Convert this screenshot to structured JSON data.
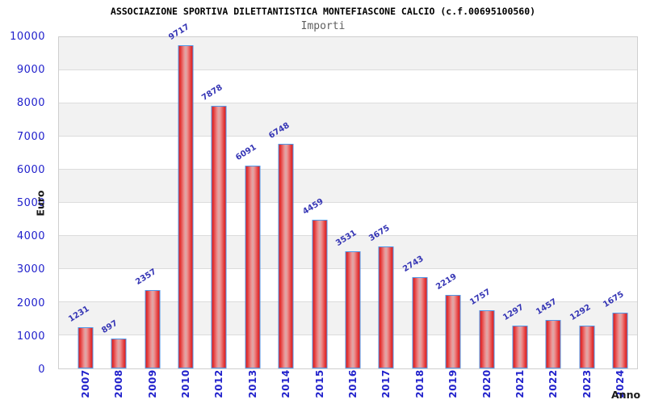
{
  "header": {
    "title": "ASSOCIAZIONE SPORTIVA DILETTANTISTICA MONTEFIASCONE CALCIO (c.f.00695100560)",
    "subtitle": "Importi"
  },
  "axes": {
    "y_title": "Euro",
    "x_title": "Anno"
  },
  "colors": {
    "tick_label_blue": "#2121cc",
    "value_label_blue": "#3434b4",
    "bar_red": "#df1b1b",
    "bar_center_light": "#dcaaaa",
    "bar_border_blue": "#4f97e8",
    "band_gray": "#f2f2f2",
    "gridline_gray": "#dcdcdc",
    "subtitle_gray": "#5f5f5f",
    "axis_title_dark": "#1a1a1a"
  },
  "chart_data": {
    "type": "bar",
    "title": "ASSOCIAZIONE SPORTIVA DILETTANTISTICA MONTEFIASCONE CALCIO (c.f.00695100560)",
    "subtitle": "Importi",
    "xlabel": "Anno",
    "ylabel": "Euro",
    "categories": [
      "2007",
      "2008",
      "2009",
      "2010",
      "2012",
      "2013",
      "2014",
      "2015",
      "2016",
      "2017",
      "2018",
      "2019",
      "2020",
      "2021",
      "2022",
      "2023",
      "2024"
    ],
    "values": [
      1231,
      897,
      2357,
      9717,
      7878,
      6091,
      6748,
      4459,
      3531,
      3675,
      2743,
      2219,
      1757,
      1297,
      1457,
      1292,
      1675
    ],
    "ylim": [
      0,
      10000
    ],
    "yticks": [
      0,
      1000,
      2000,
      3000,
      4000,
      5000,
      6000,
      7000,
      8000,
      9000,
      10000
    ],
    "grid": true,
    "alternating_bands": true,
    "value_labels_rotated_deg": -32,
    "x_labels_rotated_deg": -90,
    "legend_position": "none"
  }
}
